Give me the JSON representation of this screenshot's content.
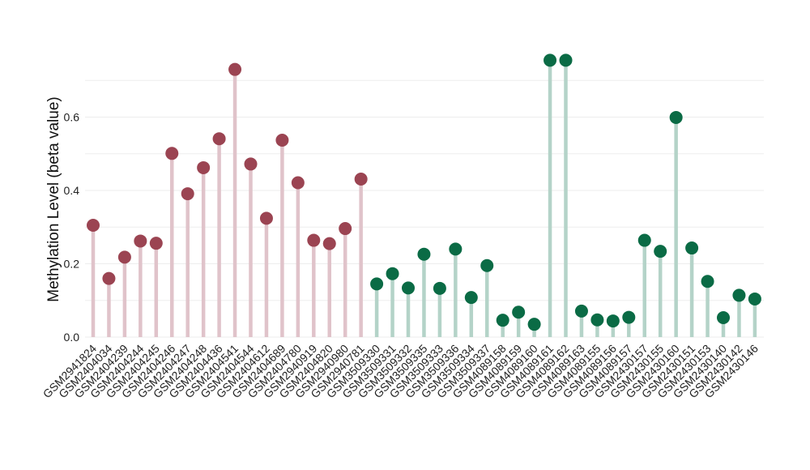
{
  "chart_data": {
    "type": "lollipop",
    "ylabel": "Methylation Level (beta value)",
    "xlabel": "",
    "ylim": [
      0,
      0.8
    ],
    "yticks": [
      0.0,
      0.2,
      0.4,
      0.6
    ],
    "ytick_labels": [
      "0.0",
      "0.2",
      "0.4",
      "0.6"
    ],
    "grid": true,
    "categories": [
      "GSM2941824",
      "GSM2404034",
      "GSM2404239",
      "GSM2404244",
      "GSM2404245",
      "GSM2404246",
      "GSM2404247",
      "GSM2404248",
      "GSM2404436",
      "GSM2404541",
      "GSM2404544",
      "GSM2404612",
      "GSM2404689",
      "GSM2404780",
      "GSM2940919",
      "GSM2404820",
      "GSM2940980",
      "GSM2940781",
      "GSM3509330",
      "GSM3509331",
      "GSM3509332",
      "GSM3509335",
      "GSM3509333",
      "GSM3509336",
      "GSM3509334",
      "GSM3509337",
      "GSM4089158",
      "GSM4089159",
      "GSM4089160",
      "GSM4089161",
      "GSM4089162",
      "GSM4089163",
      "GSM4089155",
      "GSM4089156",
      "GSM4089157",
      "GSM2430157",
      "GSM2430155",
      "GSM2430160",
      "GSM2430151",
      "GSM2430153",
      "GSM2430140",
      "GSM2430142",
      "GSM2430146"
    ],
    "values": [
      0.305,
      0.16,
      0.218,
      0.262,
      0.256,
      0.501,
      0.391,
      0.462,
      0.541,
      0.73,
      0.472,
      0.324,
      0.537,
      0.421,
      0.264,
      0.255,
      0.296,
      0.431,
      0.145,
      0.173,
      0.134,
      0.226,
      0.133,
      0.24,
      0.108,
      0.195,
      0.046,
      0.068,
      0.035,
      0.755,
      0.755,
      0.071,
      0.047,
      0.044,
      0.054,
      0.264,
      0.234,
      0.599,
      0.243,
      0.152,
      0.053,
      0.114,
      0.104
    ],
    "groups": [
      {
        "start": 0,
        "end": 17,
        "dot_color": "#9b4452",
        "stem_color": "#e0c3ca"
      },
      {
        "start": 18,
        "end": 42,
        "dot_color": "#0a6b45",
        "stem_color": "#b4d3c8"
      }
    ],
    "gridline_color": "#ededed"
  }
}
